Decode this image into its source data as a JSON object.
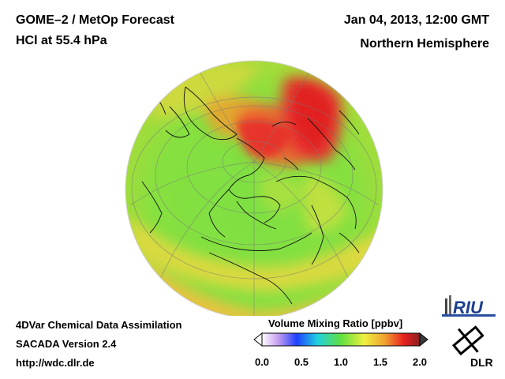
{
  "header": {
    "title_line1": "GOME–2 / MetOp Forecast",
    "title_line2": "HCl at 55.4 hPa",
    "datetime": "Jan 04, 2013, 12:00 GMT",
    "region": "Northern Hemisphere"
  },
  "footer": {
    "line1": "4DVar Chemical Data Assimilation",
    "line2": "SACADA Version 2.4",
    "line3": "http://wdc.dlr.de"
  },
  "colorbar": {
    "title": "Volume Mixing Ratio [ppbv]",
    "ticks": [
      "0.0",
      "0.5",
      "1.0",
      "1.5",
      "2.0"
    ],
    "min": 0.0,
    "max": 2.0
  },
  "logos": {
    "riu": "RIU",
    "dlr": "DLR"
  },
  "colors": {
    "background": "#ffffff",
    "low": "#2050ff",
    "mid": "#80e040",
    "high": "#e82020"
  }
}
